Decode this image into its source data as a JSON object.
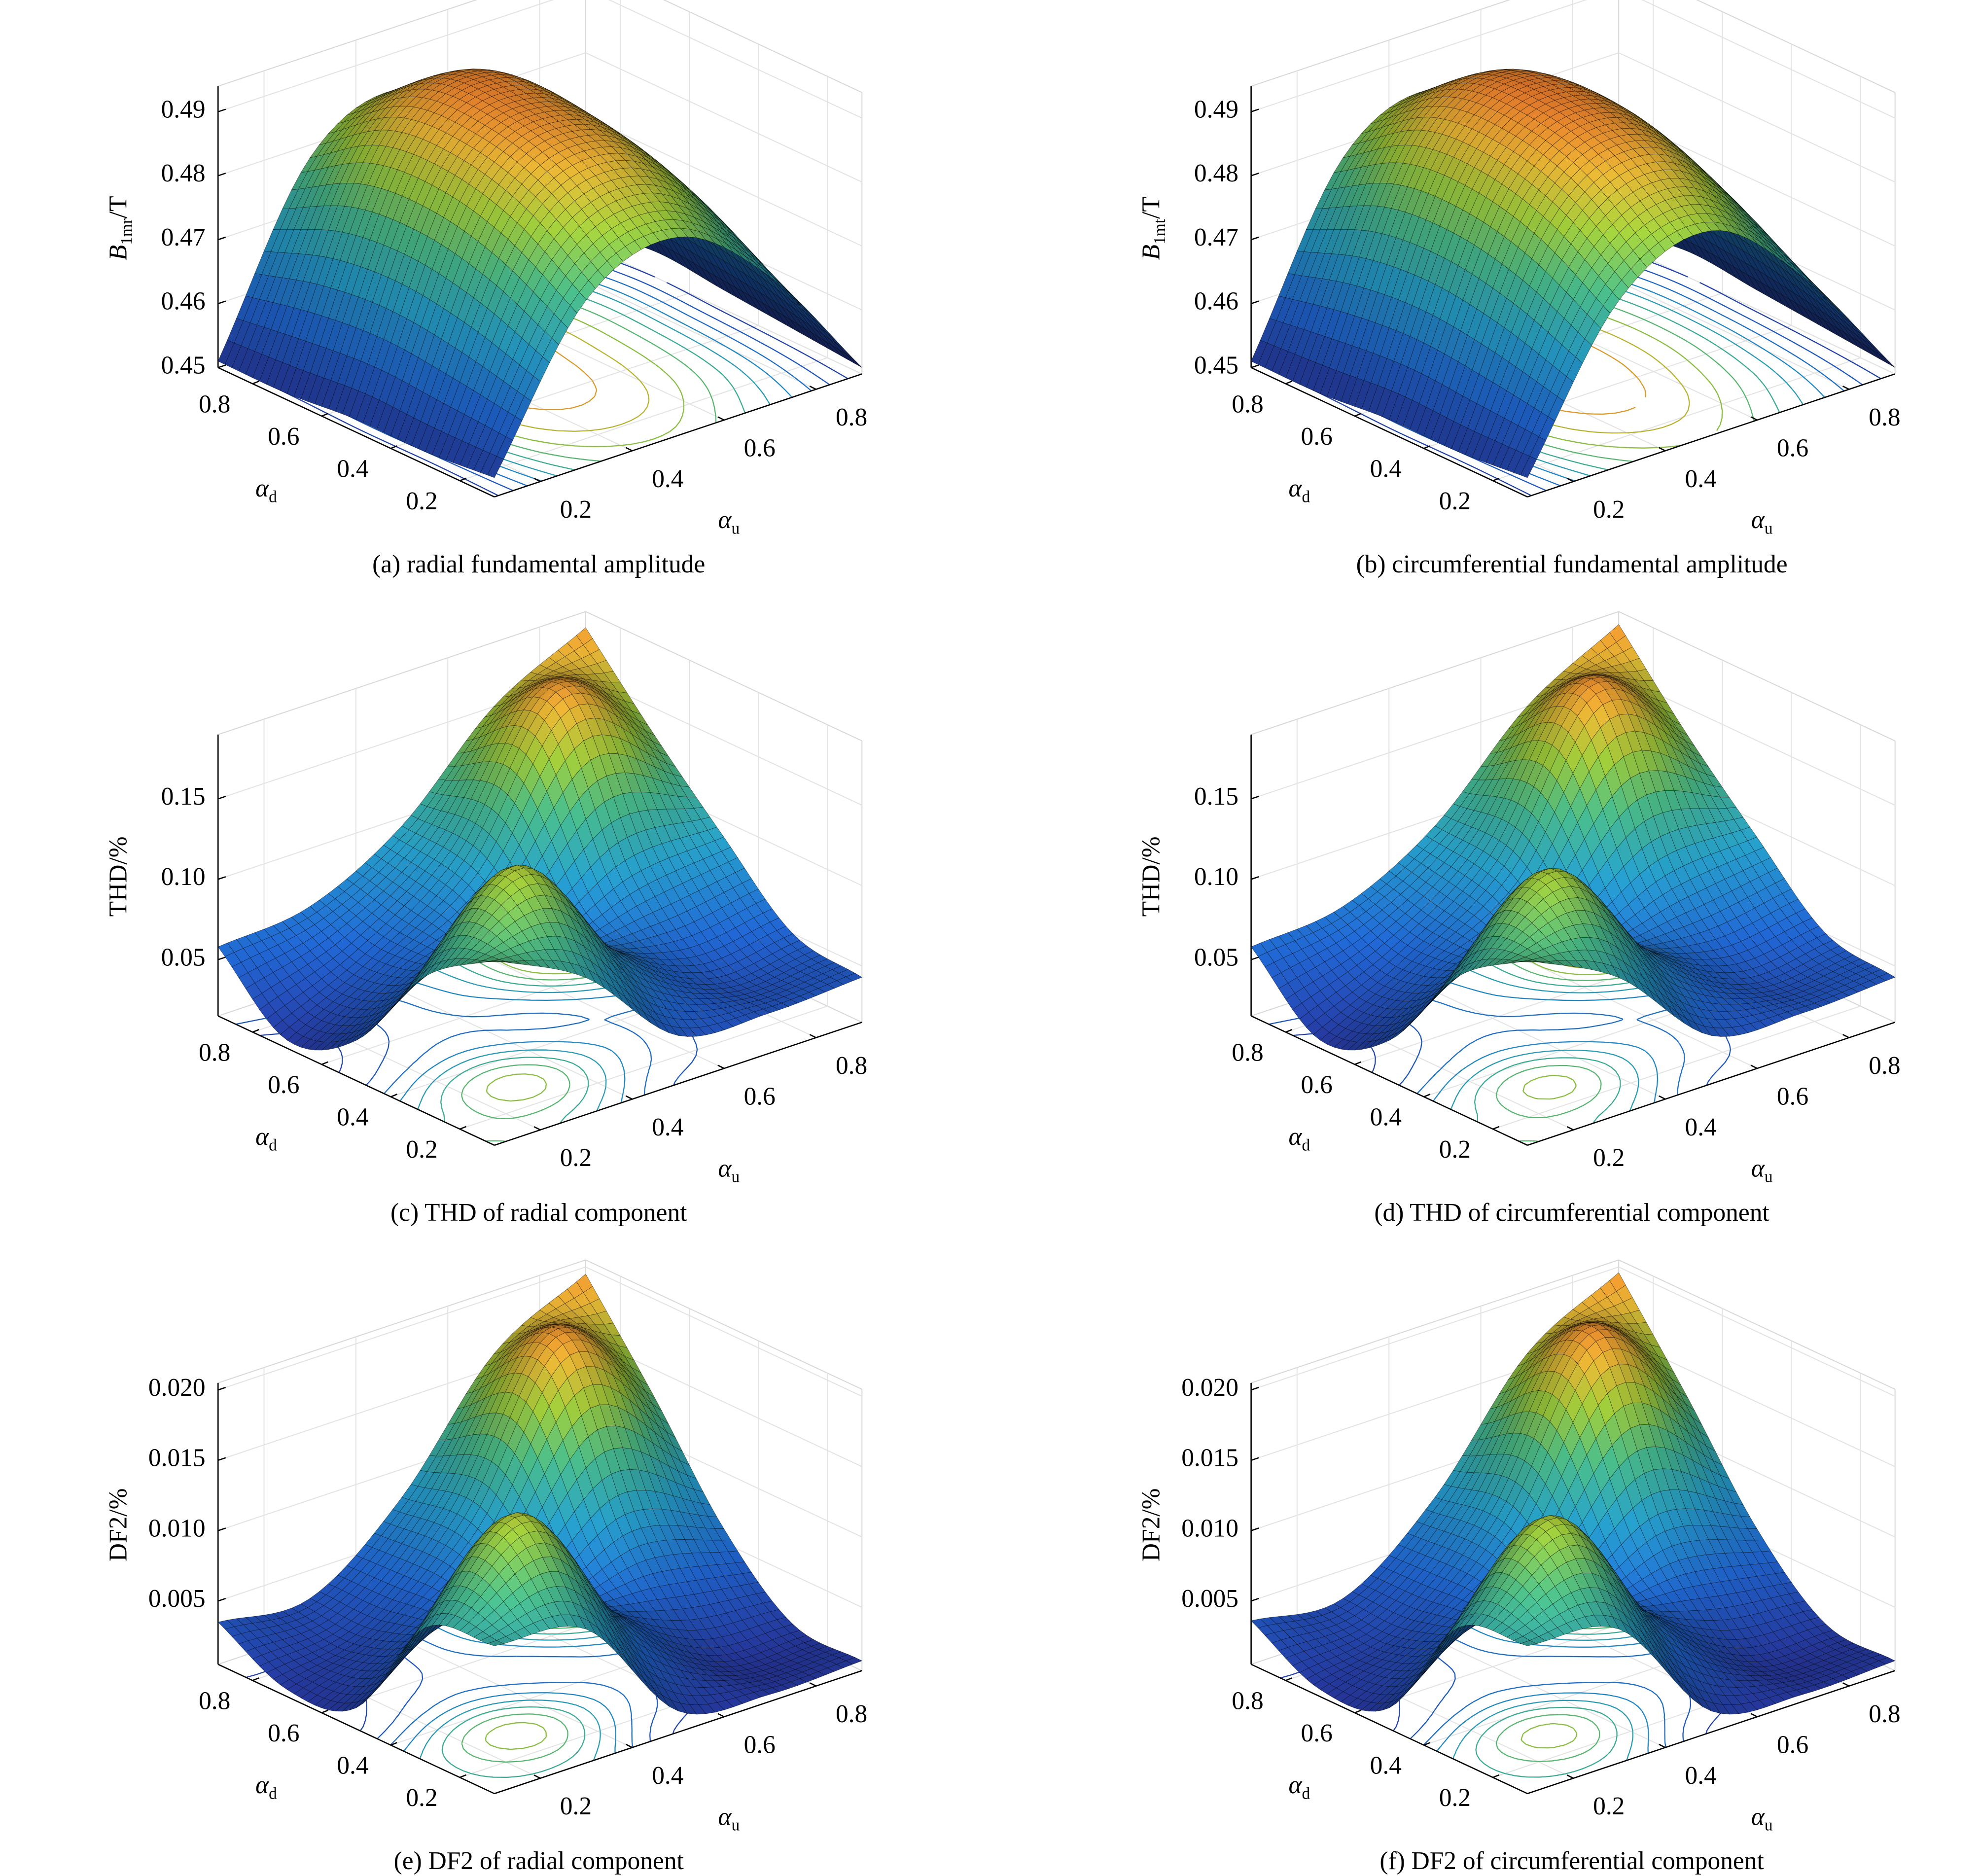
{
  "chart_data": [
    {
      "type": "surface",
      "caption": "(a) radial fundamental amplitude",
      "xlabel": {
        "text": "α",
        "subscript": "u"
      },
      "ylabel": {
        "text": "α",
        "subscript": "d"
      },
      "zlabel": {
        "text": "B",
        "subscript": "1mr",
        "suffix": "/T"
      },
      "x": [
        0.1,
        0.3,
        0.5,
        0.7,
        0.9
      ],
      "y": [
        0.1,
        0.3,
        0.5,
        0.7,
        0.9
      ],
      "z": [
        [
          0.453,
          0.476,
          0.481,
          0.47,
          0.451
        ],
        [
          0.452,
          0.483,
          0.489,
          0.477,
          0.452
        ],
        [
          0.452,
          0.486,
          0.492,
          0.48,
          0.453
        ],
        [
          0.451,
          0.485,
          0.492,
          0.48,
          0.454
        ],
        [
          0.451,
          0.478,
          0.484,
          0.473,
          0.452
        ]
      ],
      "xlim": [
        0.1,
        0.9
      ],
      "ylim": [
        0.1,
        0.9
      ],
      "zlim": [
        0.45,
        0.494
      ],
      "xticks": [
        0.2,
        0.4,
        0.6,
        0.8
      ],
      "yticks": [
        0.2,
        0.4,
        0.6,
        0.8
      ],
      "zticks": [
        0.45,
        0.46,
        0.47,
        0.48,
        0.49
      ],
      "grid": true,
      "contours": true,
      "colormap": "parula"
    },
    {
      "type": "surface",
      "caption": "(b) circumferential fundamental amplitude",
      "xlabel": {
        "text": "α",
        "subscript": "u"
      },
      "ylabel": {
        "text": "α",
        "subscript": "d"
      },
      "zlabel": {
        "text": "B",
        "subscript": "1mt",
        "suffix": "/T"
      },
      "x": [
        0.1,
        0.3,
        0.5,
        0.7,
        0.9
      ],
      "y": [
        0.1,
        0.3,
        0.5,
        0.7,
        0.9
      ],
      "z": [
        [
          0.453,
          0.476,
          0.482,
          0.47,
          0.451
        ],
        [
          0.452,
          0.483,
          0.49,
          0.477,
          0.452
        ],
        [
          0.452,
          0.486,
          0.493,
          0.481,
          0.453
        ],
        [
          0.451,
          0.485,
          0.492,
          0.48,
          0.454
        ],
        [
          0.451,
          0.478,
          0.484,
          0.473,
          0.452
        ]
      ],
      "xlim": [
        0.1,
        0.9
      ],
      "ylim": [
        0.1,
        0.9
      ],
      "zlim": [
        0.45,
        0.494
      ],
      "xticks": [
        0.2,
        0.4,
        0.6,
        0.8
      ],
      "yticks": [
        0.2,
        0.4,
        0.6,
        0.8
      ],
      "zticks": [
        0.45,
        0.46,
        0.47,
        0.48,
        0.49
      ],
      "grid": true,
      "contours": true,
      "colormap": "parula"
    },
    {
      "type": "surface",
      "caption": "(c) THD of radial component",
      "xlabel": {
        "text": "α",
        "subscript": "u"
      },
      "ylabel": {
        "text": "α",
        "subscript": "d"
      },
      "zlabel": {
        "text": "THD/%"
      },
      "x": [
        0.1,
        0.3,
        0.5,
        0.7,
        0.9
      ],
      "y": [
        0.1,
        0.3,
        0.5,
        0.7,
        0.9
      ],
      "z": [
        [
          0.13,
          0.1,
          0.045,
          0.04,
          0.043
        ],
        [
          0.1,
          0.15,
          0.08,
          0.045,
          0.05
        ],
        [
          0.04,
          0.07,
          0.06,
          0.085,
          0.09
        ],
        [
          0.02,
          0.05,
          0.09,
          0.175,
          0.133
        ],
        [
          0.058,
          0.064,
          0.095,
          0.15,
          0.18
        ]
      ],
      "xlim": [
        0.1,
        0.9
      ],
      "ylim": [
        0.1,
        0.9
      ],
      "zlim": [
        0.015,
        0.19
      ],
      "xticks": [
        0.2,
        0.4,
        0.6,
        0.8
      ],
      "yticks": [
        0.2,
        0.4,
        0.6,
        0.8
      ],
      "zticks": [
        0.05,
        {
          "value": 0.1,
          "label": "0.10"
        },
        0.15
      ],
      "grid": true,
      "contours": true,
      "colormap": "parula"
    },
    {
      "type": "surface",
      "caption": "(d) THD of circumferential component",
      "xlabel": {
        "text": "α",
        "subscript": "u"
      },
      "ylabel": {
        "text": "α",
        "subscript": "d"
      },
      "zlabel": {
        "text": "THD/%"
      },
      "x": [
        0.1,
        0.3,
        0.5,
        0.7,
        0.9
      ],
      "y": [
        0.1,
        0.3,
        0.5,
        0.7,
        0.9
      ],
      "z": [
        [
          0.13,
          0.1,
          0.045,
          0.04,
          0.043
        ],
        [
          0.1,
          0.148,
          0.08,
          0.045,
          0.05
        ],
        [
          0.04,
          0.07,
          0.06,
          0.085,
          0.09
        ],
        [
          0.02,
          0.05,
          0.09,
          0.178,
          0.133
        ],
        [
          0.058,
          0.064,
          0.095,
          0.15,
          0.182
        ]
      ],
      "xlim": [
        0.1,
        0.9
      ],
      "ylim": [
        0.1,
        0.9
      ],
      "zlim": [
        0.015,
        0.19
      ],
      "xticks": [
        0.2,
        0.4,
        0.6,
        0.8
      ],
      "yticks": [
        0.2,
        0.4,
        0.6,
        0.8
      ],
      "zticks": [
        0.05,
        {
          "value": 0.1,
          "label": "0.10"
        },
        0.15
      ],
      "grid": true,
      "contours": true,
      "colormap": "parula"
    },
    {
      "type": "surface",
      "caption": "(e) DF2 of radial component",
      "xlabel": {
        "text": "α",
        "subscript": "u"
      },
      "ylabel": {
        "text": "α",
        "subscript": "d"
      },
      "zlabel": {
        "text": "DF2/%"
      },
      "x": [
        0.1,
        0.3,
        0.5,
        0.7,
        0.9
      ],
      "y": [
        0.1,
        0.3,
        0.5,
        0.7,
        0.9
      ],
      "z": [
        [
          0.011,
          0.01,
          0.002,
          0.001,
          0.0012
        ],
        [
          0.01,
          0.016,
          0.007,
          0.002,
          0.0015
        ],
        [
          0.002,
          0.006,
          0.005,
          0.008,
          0.006
        ],
        [
          0.001,
          0.003,
          0.0085,
          0.019,
          0.013
        ],
        [
          0.0035,
          0.003,
          0.008,
          0.016,
          0.0195
        ]
      ],
      "xlim": [
        0.1,
        0.9
      ],
      "ylim": [
        0.1,
        0.9
      ],
      "zlim": [
        0.0005,
        0.0205
      ],
      "xticks": [
        0.2,
        0.4,
        0.6,
        0.8
      ],
      "yticks": [
        0.2,
        0.4,
        0.6,
        0.8
      ],
      "zticks": [
        0.005,
        {
          "value": 0.01,
          "label": "0.010"
        },
        0.015,
        {
          "value": 0.02,
          "label": "0.020"
        }
      ],
      "grid": true,
      "contours": true,
      "colormap": "parula"
    },
    {
      "type": "surface",
      "caption": "(f) DF2 of circumferential component",
      "xlabel": {
        "text": "α",
        "subscript": "u"
      },
      "ylabel": {
        "text": "α",
        "subscript": "d"
      },
      "zlabel": {
        "text": "DF2/%"
      },
      "x": [
        0.1,
        0.3,
        0.5,
        0.7,
        0.9
      ],
      "y": [
        0.1,
        0.3,
        0.5,
        0.7,
        0.9
      ],
      "z": [
        [
          0.011,
          0.01,
          0.002,
          0.001,
          0.0012
        ],
        [
          0.01,
          0.0158,
          0.007,
          0.002,
          0.0015
        ],
        [
          0.002,
          0.006,
          0.005,
          0.008,
          0.006
        ],
        [
          0.001,
          0.003,
          0.0085,
          0.0192,
          0.013
        ],
        [
          0.0036,
          0.003,
          0.008,
          0.016,
          0.0196
        ]
      ],
      "xlim": [
        0.1,
        0.9
      ],
      "ylim": [
        0.1,
        0.9
      ],
      "zlim": [
        0.0005,
        0.0205
      ],
      "xticks": [
        0.2,
        0.4,
        0.6,
        0.8
      ],
      "yticks": [
        0.2,
        0.4,
        0.6,
        0.8
      ],
      "zticks": [
        0.005,
        {
          "value": 0.01,
          "label": "0.010"
        },
        0.015,
        {
          "value": 0.02,
          "label": "0.020"
        }
      ],
      "grid": true,
      "contours": true,
      "colormap": "parula"
    }
  ]
}
